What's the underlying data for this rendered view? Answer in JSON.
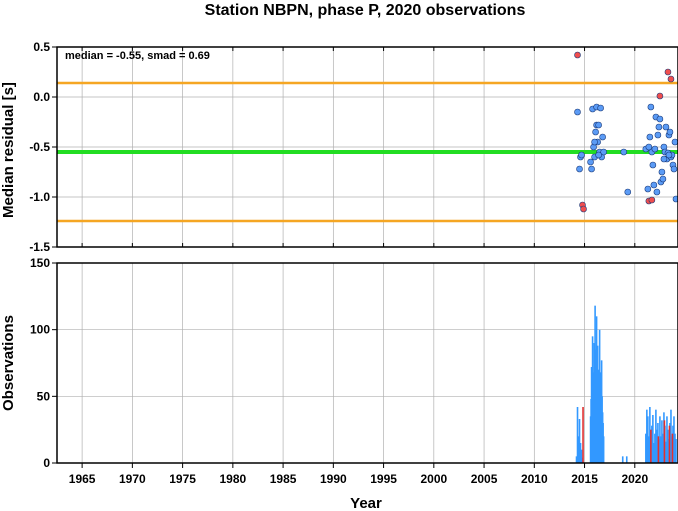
{
  "chart_data": [
    {
      "type": "scatter",
      "title": "Station NBPN, phase P, 2020 observations",
      "xlabel": "",
      "ylabel": "Median residual [s]",
      "annotation": "median = -0.55, smad = 0.69",
      "xlim": [
        1962.5,
        2024.3
      ],
      "ylim": [
        -1.5,
        0.5
      ],
      "yticks": [
        "0.5",
        "0.0",
        "-0.5",
        "-1.0",
        "-1.5"
      ],
      "grid": true,
      "hlines": [
        {
          "y": -0.55,
          "color": "#22dd22"
        },
        {
          "y": 0.14,
          "color": "#f5a623"
        },
        {
          "y": -1.24,
          "color": "#f5a623"
        }
      ],
      "series": [
        {
          "color": "#5b9bf5",
          "x": [
            2014.3,
            2014.5,
            2014.6,
            2014.7,
            2015.6,
            2015.8,
            2015.9,
            2016.0,
            2016.1,
            2016.2,
            2016.2,
            2016.3,
            2016.4,
            2016.5,
            2016.6,
            2016.7,
            2016.8,
            2016.9,
            2018.9,
            2019.3,
            2021.1,
            2021.3,
            2021.4,
            2021.5,
            2021.6,
            2021.7,
            2021.8,
            2021.9,
            2022.0,
            2022.1,
            2022.2,
            2022.3,
            2022.4,
            2022.5,
            2022.6,
            2022.7,
            2022.8,
            2022.9,
            2023.0,
            2023.1,
            2023.2,
            2023.3,
            2023.4,
            2023.5,
            2023.6,
            2023.7,
            2023.8,
            2023.9,
            2024.0,
            2024.1,
            2015.7,
            2016.0,
            2016.4,
            2022.9,
            2023.4
          ],
          "y": [
            -0.15,
            -0.72,
            -0.6,
            -0.58,
            -0.65,
            -0.12,
            -0.5,
            -0.6,
            -0.35,
            -0.28,
            -0.1,
            -0.45,
            -0.28,
            -0.55,
            -0.11,
            -0.6,
            -0.4,
            -0.55,
            -0.55,
            -0.95,
            -0.52,
            -0.92,
            -0.5,
            -0.4,
            -0.1,
            -0.55,
            -0.68,
            -0.88,
            -0.52,
            -0.2,
            -0.95,
            -0.38,
            -0.3,
            -0.22,
            -0.85,
            -0.75,
            -0.82,
            -0.5,
            -0.55,
            -0.3,
            -0.62,
            -0.56,
            -0.38,
            -0.35,
            -0.6,
            -0.58,
            -0.68,
            -0.72,
            -0.45,
            -1.02,
            -0.72,
            -0.45,
            -0.58,
            -0.62,
            -0.58
          ]
        },
        {
          "color": "#f04e4e",
          "x": [
            2014.3,
            2014.8,
            2014.9,
            2021.4,
            2021.7,
            2022.5,
            2023.3,
            2023.6
          ],
          "y": [
            0.42,
            -1.08,
            -1.12,
            -1.04,
            -1.03,
            0.01,
            0.25,
            0.18
          ]
        }
      ]
    },
    {
      "type": "bar",
      "title": "",
      "xlabel": "Year",
      "ylabel": "Observations",
      "xlim": [
        1962.5,
        2024.3
      ],
      "ylim": [
        0,
        150
      ],
      "xticks": [
        "1965",
        "1970",
        "1975",
        "1980",
        "1985",
        "1990",
        "1995",
        "2000",
        "2005",
        "2010",
        "2015",
        "2020"
      ],
      "yticks": [
        "150",
        "100",
        "50",
        "0"
      ],
      "grid": true,
      "series": [
        {
          "color": "#3399ff",
          "x": [
            2014.2,
            2014.3,
            2014.4,
            2014.5,
            2014.6,
            2014.7,
            2014.8,
            2015.6,
            2015.65,
            2015.7,
            2015.75,
            2015.8,
            2015.85,
            2015.9,
            2015.95,
            2016.0,
            2016.05,
            2016.1,
            2016.15,
            2016.2,
            2016.25,
            2016.3,
            2016.35,
            2016.4,
            2016.45,
            2016.5,
            2016.55,
            2016.6,
            2016.65,
            2016.7,
            2016.75,
            2016.8,
            2016.85,
            2016.9,
            2018.8,
            2019.2,
            2021.1,
            2021.2,
            2021.3,
            2021.4,
            2021.5,
            2021.6,
            2021.7,
            2021.8,
            2021.9,
            2022.0,
            2022.1,
            2022.2,
            2022.3,
            2022.4,
            2022.5,
            2022.6,
            2022.7,
            2022.8,
            2022.9,
            2023.0,
            2023.1,
            2023.2,
            2023.3,
            2023.4,
            2023.5,
            2023.6,
            2023.7,
            2023.8,
            2023.9,
            2024.0,
            2024.1
          ],
          "values": [
            5,
            42,
            20,
            33,
            15,
            10,
            4,
            35,
            48,
            72,
            55,
            95,
            60,
            68,
            90,
            80,
            118,
            85,
            60,
            110,
            52,
            88,
            45,
            70,
            58,
            100,
            42,
            68,
            55,
            77,
            50,
            38,
            30,
            20,
            5,
            5,
            22,
            40,
            35,
            20,
            42,
            18,
            28,
            36,
            15,
            22,
            40,
            25,
            30,
            18,
            35,
            20,
            32,
            22,
            38,
            28,
            16,
            35,
            25,
            18,
            30,
            40,
            20,
            28,
            35,
            22,
            18
          ]
        },
        {
          "color": "#e03030",
          "x": [
            2014.85,
            2021.6,
            2022.35,
            2022.95,
            2023.45,
            2023.75
          ],
          "values": [
            42,
            25,
            20,
            32,
            28,
            22
          ]
        }
      ]
    }
  ]
}
